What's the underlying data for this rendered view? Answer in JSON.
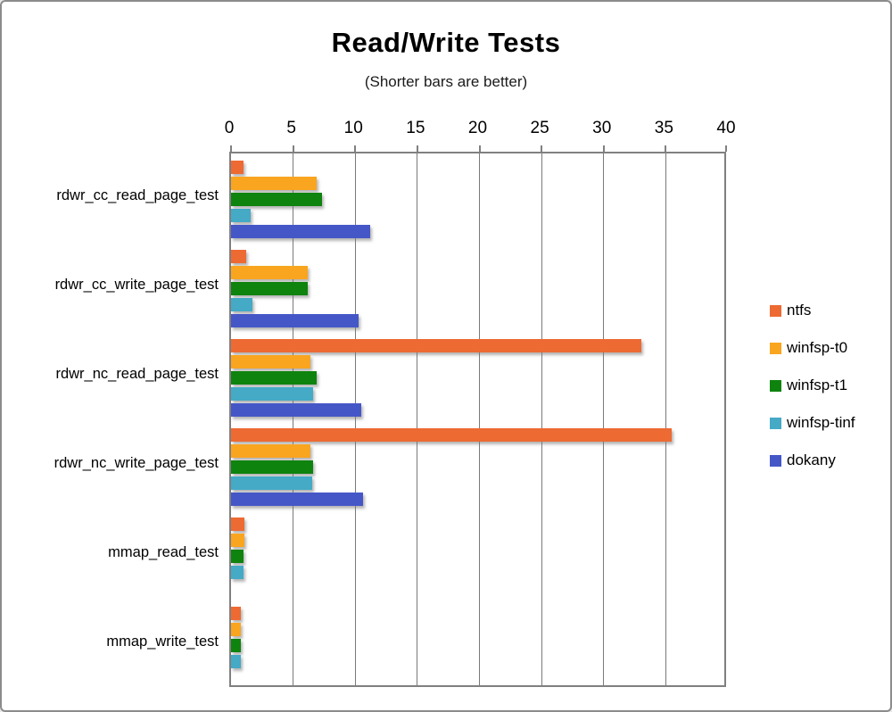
{
  "header": {
    "title": "Read/Write Tests",
    "subtitle": "(Shorter bars are better)"
  },
  "chart_data": {
    "type": "bar",
    "orientation": "horizontal",
    "title": "Read/Write Tests",
    "subtitle": "(Shorter bars are better)",
    "value_axis": {
      "position": "top",
      "min": 0,
      "max": 40,
      "tick_step": 5,
      "ticks": [
        0,
        5,
        10,
        15,
        20,
        25,
        30,
        35,
        40
      ]
    },
    "gridlines": true,
    "categories": [
      "rdwr_cc_read_page_test",
      "rdwr_cc_write_page_test",
      "rdwr_nc_read_page_test",
      "rdwr_nc_write_page_test",
      "mmap_read_test",
      "mmap_write_test"
    ],
    "series": [
      {
        "name": "ntfs",
        "color": "#ED6A33",
        "values": [
          1.0,
          1.2,
          33.0,
          35.5,
          1.1,
          0.8
        ]
      },
      {
        "name": "winfsp-t0",
        "color": "#F9A51F",
        "values": [
          6.9,
          6.2,
          6.4,
          6.4,
          1.1,
          0.8
        ]
      },
      {
        "name": "winfsp-t1",
        "color": "#0E830E",
        "values": [
          7.3,
          6.2,
          6.9,
          6.6,
          1.0,
          0.8
        ]
      },
      {
        "name": "winfsp-tinf",
        "color": "#44AAC6",
        "values": [
          1.6,
          1.7,
          6.6,
          6.5,
          1.0,
          0.8
        ]
      },
      {
        "name": "dokany",
        "color": "#4557C7",
        "values": [
          11.2,
          10.3,
          10.5,
          10.6,
          0,
          0
        ]
      }
    ],
    "legend": {
      "position": "right",
      "entries": [
        "ntfs",
        "winfsp-t0",
        "winfsp-t1",
        "winfsp-tinf",
        "dokany"
      ]
    }
  }
}
